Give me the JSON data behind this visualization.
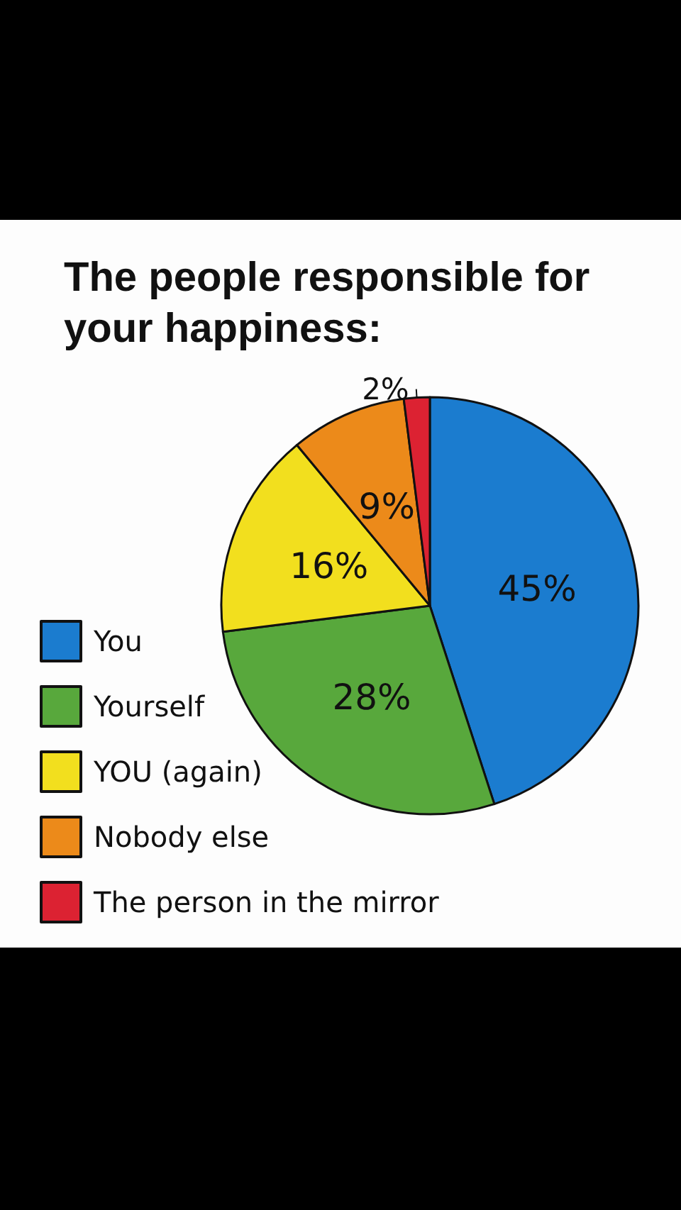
{
  "chart_data": {
    "type": "pie",
    "title": "The people responsible for your happiness:",
    "categories": [
      "You",
      "Yourself",
      "YOU (again)",
      "Nobody else",
      "The person in the mirror"
    ],
    "values": [
      45,
      28,
      16,
      9,
      2
    ],
    "colors": [
      "#1b7ccf",
      "#58a83c",
      "#f2df1e",
      "#ec8a1a",
      "#dc2232"
    ],
    "value_labels": [
      "45%",
      "28%",
      "16%",
      "9%",
      "2%"
    ],
    "legend": "bottom left"
  }
}
